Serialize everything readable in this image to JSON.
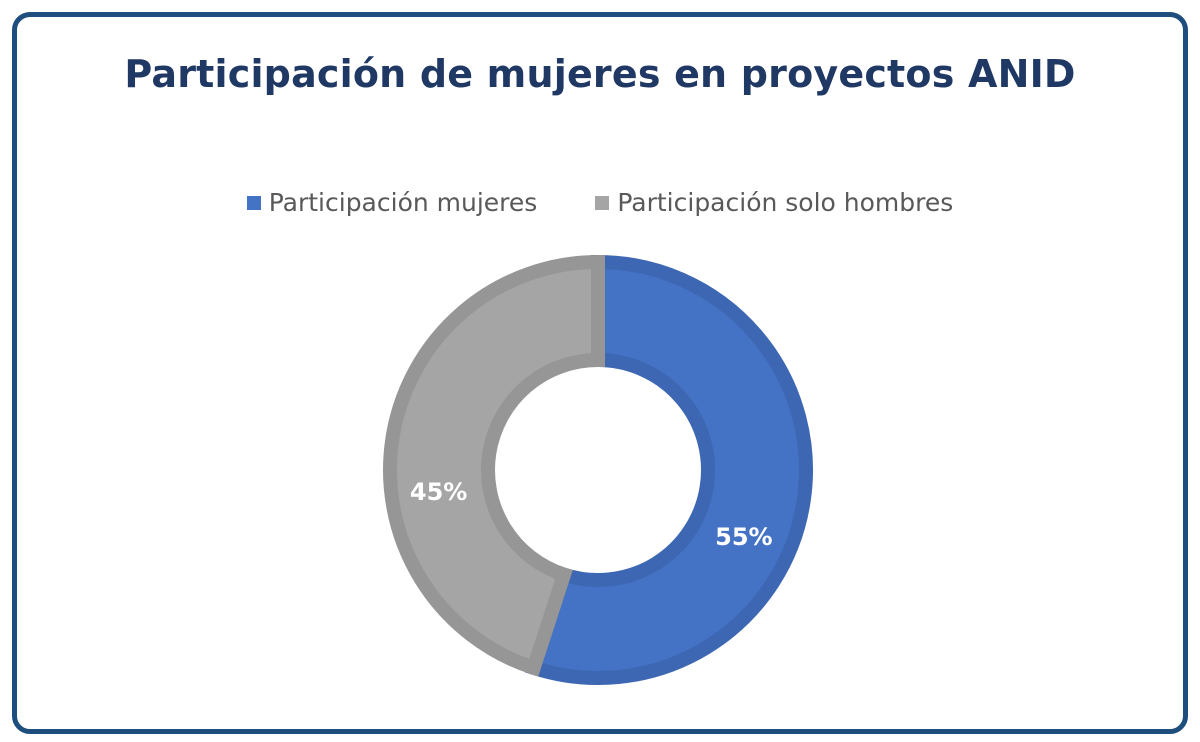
{
  "chart_data": {
    "type": "pie",
    "style": "donut",
    "title": "Participación de mujeres en proyectos ANID",
    "legend_position": "top",
    "slices": [
      {
        "name": "Participación mujeres",
        "value": 55,
        "label": "55%",
        "color": "#4472c4",
        "edge": "#3d67b3"
      },
      {
        "name": "Participación solo hombres",
        "value": 45,
        "label": "45%",
        "color": "#a5a5a5",
        "edge": "#969696"
      }
    ]
  },
  "frame": {
    "border_color": "#1d4e7d"
  }
}
